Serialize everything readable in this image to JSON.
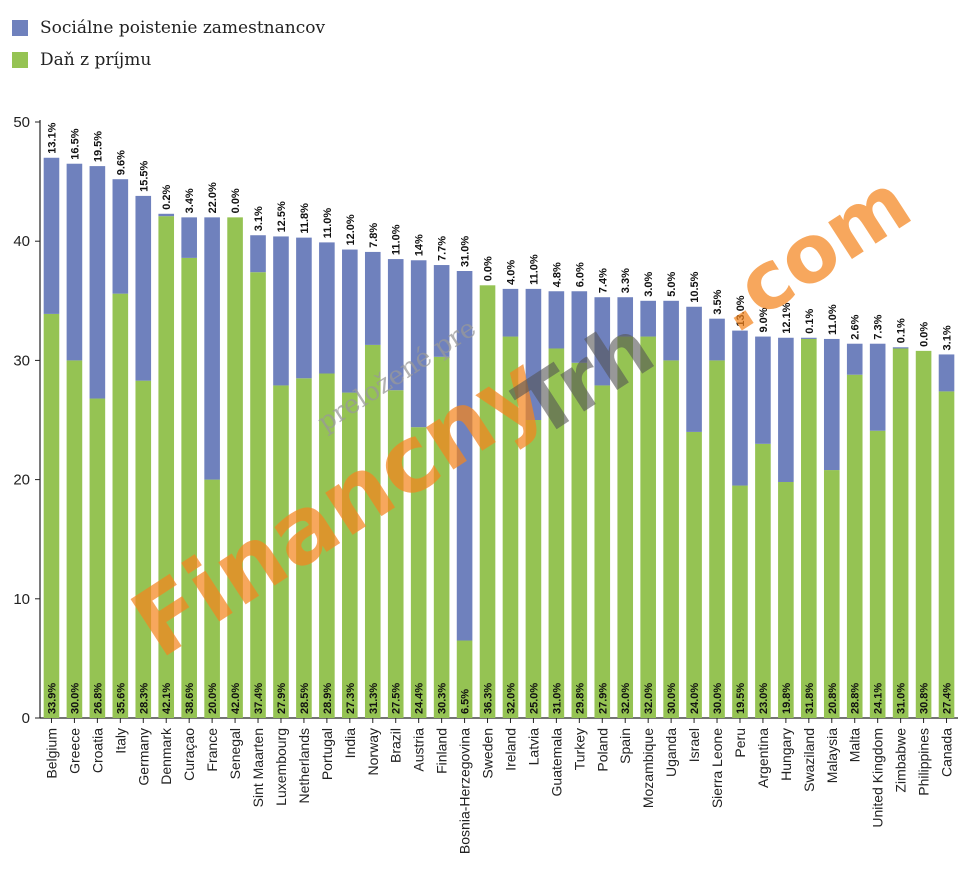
{
  "legend": {
    "social_label": "Sociálne poistenie zamestnancov",
    "income_label": "Daň z príjmu"
  },
  "colors": {
    "social": "#6f81bd",
    "income": "#95c353",
    "axis": "#222222"
  },
  "watermark": {
    "main": "Financny",
    "tail": "Trh",
    "dotcom": ".com",
    "note": "preložené pre"
  },
  "chart_data": {
    "type": "bar",
    "stacked": true,
    "ylim": [
      0,
      50
    ],
    "yticks": [
      0,
      10,
      20,
      30,
      40,
      50
    ],
    "grid": false,
    "legend_position": "top-left",
    "categories": [
      "Belgium",
      "Greece",
      "Croatia",
      "Italy",
      "Germany",
      "Denmark",
      "Curaçao",
      "France",
      "Senegal",
      "Sint Maarten",
      "Luxembourg",
      "Netherlands",
      "Portugal",
      "India",
      "Norway",
      "Brazil",
      "Austria",
      "Finland",
      "Bosnia-Herzegovina",
      "Sweden",
      "Ireland",
      "Latvia",
      "Guatemala",
      "Turkey",
      "Poland",
      "Spain",
      "Mozambique",
      "Uganda",
      "Israel",
      "Sierra Leone",
      "Peru",
      "Argentina",
      "Hungary",
      "Swaziland",
      "Malaysia",
      "Malta",
      "United Kingdom",
      "Zimbabwe",
      "Philippines",
      "Canada"
    ],
    "series": [
      {
        "name": "Daň z príjmu",
        "values": [
          33.9,
          30.0,
          26.8,
          35.6,
          28.3,
          42.1,
          38.6,
          20.0,
          42.0,
          37.4,
          27.9,
          28.5,
          28.9,
          27.3,
          31.3,
          27.5,
          24.4,
          30.3,
          6.5,
          36.3,
          32.0,
          25.0,
          31.0,
          29.8,
          27.9,
          32.0,
          32.0,
          30.0,
          24.0,
          30.0,
          19.5,
          23.0,
          19.8,
          31.8,
          20.8,
          28.8,
          24.1,
          31.0,
          30.8,
          27.4
        ],
        "labels": [
          "33.9%",
          "30.0%",
          "26.8%",
          "35.6%",
          "28.3%",
          "42.1%",
          "38.6%",
          "20.0%",
          "42.0%",
          "37.4%",
          "27.9%",
          "28.5%",
          "28.9%",
          "27.3%",
          "31.3%",
          "27.5%",
          "24.4%",
          "30.3%",
          "6.5%",
          "36.3%",
          "32.0%",
          "25.0%",
          "31.0%",
          "29.8%",
          "27.9%",
          "32.0%",
          "32.0%",
          "30.0%",
          "24.0%",
          "30.0%",
          "19.5%",
          "23.0%",
          "19.8%",
          "31.8%",
          "20.8%",
          "28.8%",
          "24.1%",
          "31.0%",
          "30.8%",
          "27.4%"
        ]
      },
      {
        "name": "Sociálne poistenie zamestnancov",
        "values": [
          13.1,
          16.5,
          19.5,
          9.6,
          15.5,
          0.2,
          3.4,
          22.0,
          0.0,
          3.1,
          12.5,
          11.8,
          11.0,
          12.0,
          7.8,
          11.0,
          14.0,
          7.7,
          31.0,
          0.0,
          4.0,
          11.0,
          4.8,
          6.0,
          7.4,
          3.3,
          3.0,
          5.0,
          10.5,
          3.5,
          13.0,
          9.0,
          12.1,
          0.1,
          11.0,
          2.6,
          7.3,
          0.1,
          0.0,
          3.1
        ],
        "labels": [
          "13.1%",
          "16.5%",
          "19.5%",
          "9.6%",
          "15.5%",
          "0.2%",
          "3.4%",
          "22.0%",
          "0.0%",
          "3.1%",
          "12.5%",
          "11.8%",
          "11.0%",
          "12.0%",
          "7.8%",
          "11.0%",
          "14%",
          "7.7%",
          "31.0%",
          "0.0%",
          "4.0%",
          "11.0%",
          "4.8%",
          "6.0%",
          "7.4%",
          "3.3%",
          "3.0%",
          "5.0%",
          "10.5%",
          "3.5%",
          "13.0%",
          "9.0%",
          "12.1%",
          "0.1%",
          "11.0%",
          "2.6%",
          "7.3%",
          "0.1%",
          "0.0%",
          "3.1%"
        ]
      }
    ]
  }
}
